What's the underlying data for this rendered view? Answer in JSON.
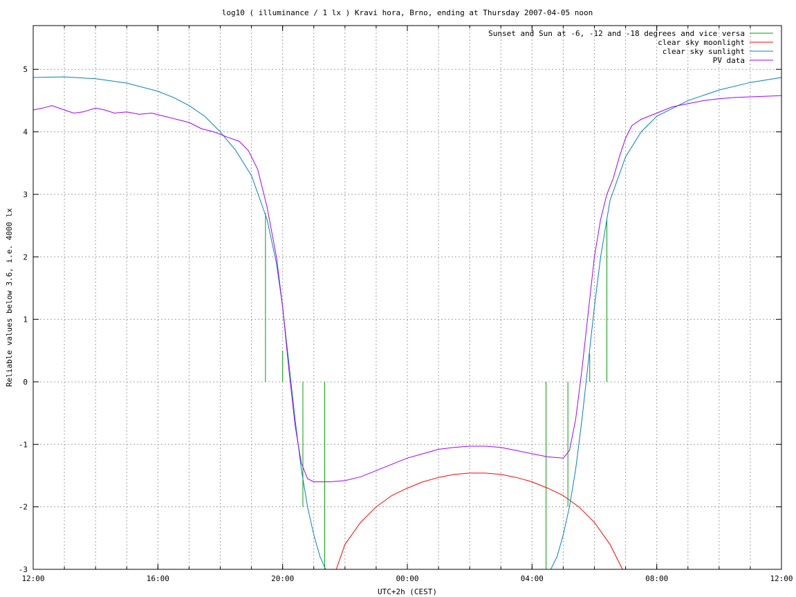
{
  "chart_data": {
    "type": "line",
    "title": "log10 ( illuminance / 1 lx ) Kravi hora, Brno, ending at Thursday 2007-04-05 noon",
    "xlabel": "UTC+2h (CEST)",
    "ylabel": "Reliable values below 3.6, i.e. 4000 lx",
    "xlim": [
      12,
      36
    ],
    "ylim": [
      -3,
      5.7
    ],
    "xticks": [
      {
        "v": 12,
        "label": "12:00"
      },
      {
        "v": 16,
        "label": "16:00"
      },
      {
        "v": 20,
        "label": "20:00"
      },
      {
        "v": 24,
        "label": "00:00"
      },
      {
        "v": 28,
        "label": "04:00"
      },
      {
        "v": 32,
        "label": "08:00"
      },
      {
        "v": 36,
        "label": "12:00"
      }
    ],
    "yticks": [
      {
        "v": 5,
        "label": "5"
      },
      {
        "v": 4,
        "label": "4"
      },
      {
        "v": 3,
        "label": "3"
      },
      {
        "v": 2,
        "label": "2"
      },
      {
        "v": 1,
        "label": "1"
      },
      {
        "v": 0,
        "label": "0"
      },
      {
        "v": -1,
        "label": "-1"
      },
      {
        "v": -2,
        "label": "-2"
      },
      {
        "v": -3,
        "label": "-3"
      }
    ],
    "grid": true,
    "legend_position": "top-right",
    "series": [
      {
        "name": "Sunset and Sun at -6, -12 and -18 degrees and vice versa",
        "color": "#00a000",
        "kind": "impulses",
        "points": [
          {
            "x": 19.45,
            "y": 2.7
          },
          {
            "x": 20.0,
            "y": 0.5
          },
          {
            "x": 20.65,
            "y": -2.0
          },
          {
            "x": 21.35,
            "y": -3
          },
          {
            "x": 28.45,
            "y": -3
          },
          {
            "x": 29.15,
            "y": -2.0
          },
          {
            "x": 29.85,
            "y": 0.45
          },
          {
            "x": 30.4,
            "y": 2.6
          }
        ]
      },
      {
        "name": "clear sky moonlight",
        "color": "#ff0000",
        "kind": "line",
        "x": [
          21.72,
          22.0,
          22.5,
          23.0,
          23.5,
          24.0,
          24.5,
          25.0,
          25.5,
          26.0,
          26.5,
          27.0,
          27.5,
          28.0,
          28.5,
          29.0,
          29.5,
          30.0,
          30.5,
          30.9
        ],
        "y": [
          -3.0,
          -2.6,
          -2.25,
          -2.0,
          -1.82,
          -1.7,
          -1.6,
          -1.53,
          -1.48,
          -1.46,
          -1.46,
          -1.48,
          -1.53,
          -1.6,
          -1.7,
          -1.82,
          -2.0,
          -2.25,
          -2.6,
          -3.0
        ]
      },
      {
        "name": "clear sky sunlight",
        "color": "#0080c0",
        "kind": "line",
        "x": [
          12.0,
          13.0,
          14.0,
          15.0,
          16.0,
          16.5,
          17.0,
          17.5,
          18.0,
          18.5,
          19.0,
          19.5,
          19.8,
          20.0,
          20.2,
          20.4,
          20.6,
          20.8,
          21.0,
          21.2,
          21.38,
          28.6,
          28.8,
          29.0,
          29.2,
          29.4,
          29.6,
          29.8,
          30.0,
          30.2,
          30.5,
          31.0,
          31.5,
          32.0,
          33.0,
          34.0,
          35.0,
          36.0
        ],
        "y": [
          4.87,
          4.88,
          4.85,
          4.78,
          4.65,
          4.55,
          4.42,
          4.25,
          4.0,
          3.7,
          3.3,
          2.6,
          1.9,
          1.2,
          0.3,
          -0.6,
          -1.4,
          -2.0,
          -2.45,
          -2.8,
          -3.0,
          -3.0,
          -2.8,
          -2.45,
          -2.0,
          -1.4,
          -0.6,
          0.3,
          1.2,
          2.0,
          2.9,
          3.6,
          4.0,
          4.25,
          4.5,
          4.67,
          4.79,
          4.87
        ]
      },
      {
        "name": "PV data",
        "color": "#a000ff",
        "kind": "line",
        "x": [
          12.0,
          12.3,
          12.6,
          13.0,
          13.3,
          13.6,
          14.0,
          14.3,
          14.6,
          15.0,
          15.4,
          15.8,
          16.2,
          16.6,
          17.0,
          17.4,
          17.8,
          18.2,
          18.6,
          18.9,
          19.2,
          19.5,
          19.8,
          20.0,
          20.2,
          20.4,
          20.6,
          20.8,
          21.0,
          21.5,
          22.0,
          22.5,
          23.0,
          23.5,
          24.0,
          24.5,
          25.0,
          25.5,
          26.0,
          26.5,
          27.0,
          27.5,
          28.0,
          28.5,
          29.0,
          29.2,
          29.4,
          29.6,
          29.8,
          30.0,
          30.2,
          30.4,
          30.6,
          30.8,
          31.0,
          31.2,
          31.5,
          32.0,
          32.5,
          33.0,
          33.5,
          34.0,
          34.5,
          35.0,
          35.5,
          36.0
        ],
        "y": [
          4.35,
          4.38,
          4.42,
          4.35,
          4.3,
          4.32,
          4.38,
          4.35,
          4.3,
          4.32,
          4.28,
          4.3,
          4.25,
          4.2,
          4.15,
          4.05,
          4.0,
          3.92,
          3.85,
          3.7,
          3.4,
          2.8,
          2.0,
          1.2,
          0.2,
          -0.7,
          -1.3,
          -1.55,
          -1.6,
          -1.6,
          -1.58,
          -1.52,
          -1.42,
          -1.32,
          -1.22,
          -1.15,
          -1.08,
          -1.05,
          -1.03,
          -1.03,
          -1.05,
          -1.1,
          -1.15,
          -1.2,
          -1.22,
          -1.1,
          -0.6,
          0.2,
          1.1,
          2.0,
          2.6,
          3.0,
          3.25,
          3.6,
          3.9,
          4.1,
          4.2,
          4.3,
          4.4,
          4.45,
          4.5,
          4.53,
          4.55,
          4.56,
          4.57,
          4.58
        ]
      }
    ]
  }
}
